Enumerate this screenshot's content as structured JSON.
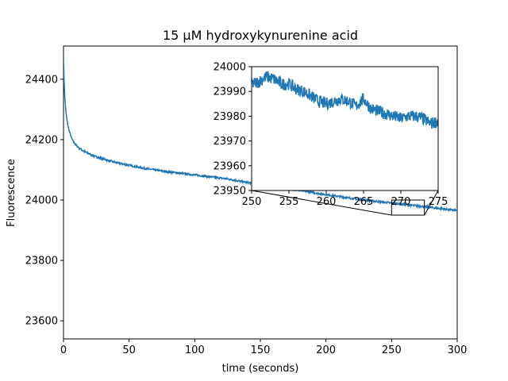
{
  "chart_data": [
    {
      "type": "line",
      "title": "15 μM hydroxykynurenine acid",
      "xlabel": "time (seconds)",
      "ylabel": "Fluorescence",
      "xlim": [
        0,
        300
      ],
      "ylim": [
        23540,
        24510
      ],
      "xticks": [
        0,
        50,
        100,
        150,
        200,
        250,
        300
      ],
      "yticks": [
        23600,
        23800,
        24000,
        24200,
        24400
      ],
      "color": "#1f77b4",
      "series": [
        {
          "x": [
            0,
            0.5,
            1,
            1.5,
            2,
            3,
            4,
            5,
            6,
            7,
            8,
            10,
            12,
            15,
            20,
            25,
            30,
            40,
            50,
            60,
            75,
            90,
            100,
            125,
            150,
            175,
            200,
            225,
            250,
            275,
            300
          ],
          "y": [
            24470,
            24390,
            24340,
            24310,
            24285,
            24255,
            24235,
            24220,
            24207,
            24197,
            24190,
            24180,
            24172,
            24163,
            24152,
            24143,
            24136,
            24124,
            24115,
            24106,
            24096,
            24088,
            24083,
            24070,
            24050,
            24035,
            24018,
            24002,
            23990,
            23978,
            23965
          ]
        }
      ]
    },
    {
      "type": "line",
      "inset": true,
      "title": "",
      "xlim": [
        250,
        275
      ],
      "ylim": [
        23950,
        24000
      ],
      "xticks": [
        250,
        255,
        260,
        265,
        270,
        275
      ],
      "yticks": [
        23950,
        23960,
        23970,
        23980,
        23990,
        24000
      ],
      "color": "#1f77b4",
      "series": [
        {
          "x": [
            250,
            251,
            252,
            253,
            254,
            255,
            256,
            257,
            258,
            259,
            260,
            261,
            262,
            263,
            264,
            265,
            266,
            267,
            268,
            269,
            270,
            271,
            272,
            273,
            274,
            275
          ],
          "y": [
            23993,
            23994,
            23996,
            23995,
            23993,
            23993,
            23991,
            23990,
            23988,
            23986,
            23985,
            23986,
            23987,
            23986,
            23984,
            23987,
            23983,
            23982,
            23981,
            23980,
            23979,
            23980,
            23980,
            23979,
            23977,
            23978
          ]
        }
      ]
    }
  ]
}
